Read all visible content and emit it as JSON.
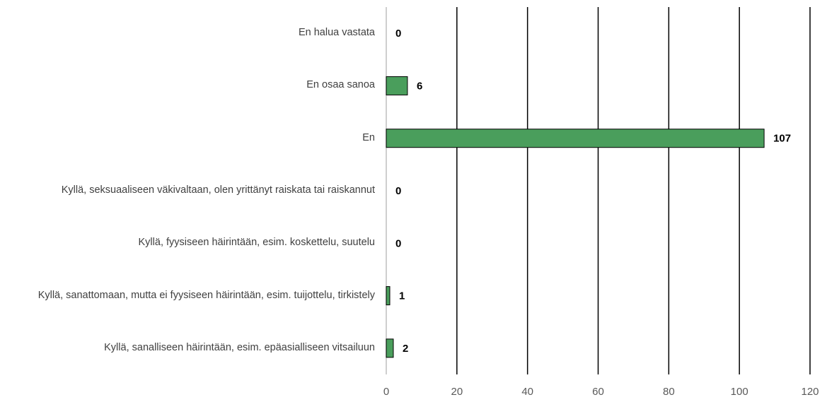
{
  "chart_data": {
    "type": "bar",
    "orientation": "horizontal",
    "categories": [
      "En halua vastata",
      "En osaa sanoa",
      "En",
      "Kyllä, seksuaaliseen väkivaltaan, olen yrittänyt raiskata tai raiskannut",
      "Kyllä, fyysiseen häirintään, esim. koskettelu, suutelu",
      "Kyllä, sanattomaan, mutta ei fyysiseen häirintään, esim. tuijottelu, tirkistely",
      "Kyllä, sanalliseen häirintään, esim. epäasialliseen vitsailuun"
    ],
    "values": [
      0,
      6,
      107,
      0,
      0,
      1,
      2
    ],
    "color": "#4a9e5c",
    "xlim": [
      0,
      120
    ],
    "xticks": [
      0,
      20,
      40,
      60,
      80,
      100,
      120
    ],
    "grid": true
  }
}
